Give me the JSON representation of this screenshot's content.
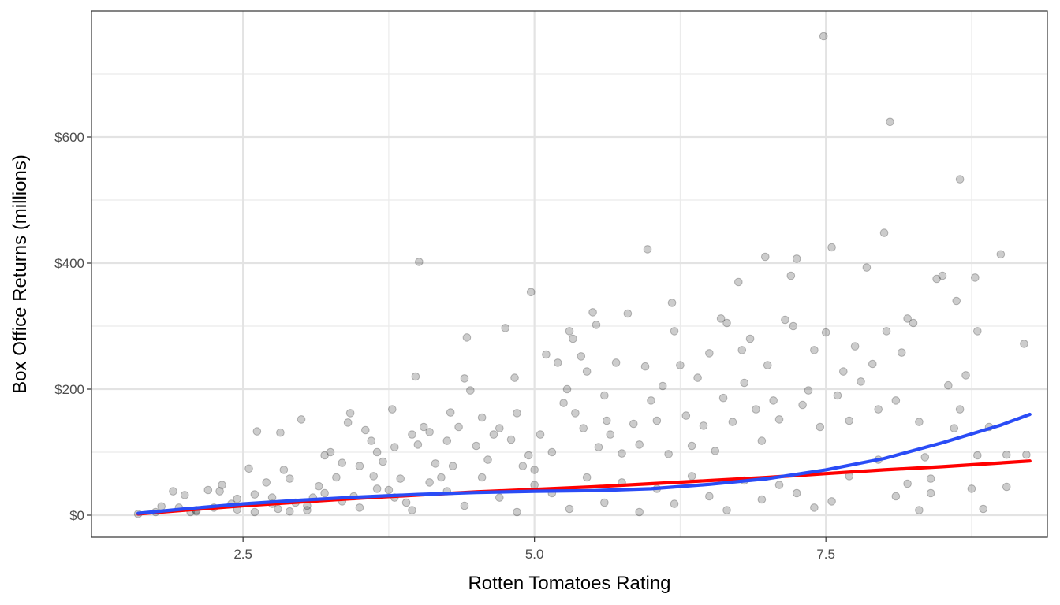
{
  "chart_data": {
    "type": "scatter",
    "title": "",
    "xlabel": "Rotten Tomatoes Rating",
    "ylabel": "Box Office Returns (millions)",
    "xlim": [
      1.2,
      9.4
    ],
    "ylim": [
      -35,
      800
    ],
    "x_ticks": [
      {
        "value": 2.5,
        "label": "2.5"
      },
      {
        "value": 5.0,
        "label": "5.0"
      },
      {
        "value": 7.5,
        "label": "7.5"
      }
    ],
    "x_minor_ticks": [
      3.75,
      6.25,
      8.75
    ],
    "y_ticks": [
      {
        "value": 0,
        "label": "$0"
      },
      {
        "value": 200,
        "label": "$200"
      },
      {
        "value": 400,
        "label": "$400"
      },
      {
        "value": 600,
        "label": "$600"
      }
    ],
    "y_minor_ticks": [
      100,
      300,
      500,
      700
    ],
    "grid": true,
    "legend": "none",
    "point_color": "#000000",
    "point_alpha": 0.2,
    "points": [
      [
        1.6,
        2
      ],
      [
        1.75,
        5
      ],
      [
        1.8,
        14
      ],
      [
        1.9,
        38
      ],
      [
        1.95,
        12
      ],
      [
        2.0,
        32
      ],
      [
        2.05,
        5
      ],
      [
        2.1,
        8
      ],
      [
        2.2,
        40
      ],
      [
        2.3,
        38
      ],
      [
        2.32,
        48
      ],
      [
        2.4,
        18
      ],
      [
        2.45,
        9
      ],
      [
        2.55,
        74
      ],
      [
        2.6,
        33
      ],
      [
        2.62,
        133
      ],
      [
        2.7,
        52
      ],
      [
        2.75,
        28
      ],
      [
        2.8,
        10
      ],
      [
        2.82,
        131
      ],
      [
        2.85,
        72
      ],
      [
        2.9,
        58
      ],
      [
        2.95,
        20
      ],
      [
        3.0,
        152
      ],
      [
        3.05,
        8
      ],
      [
        3.1,
        28
      ],
      [
        3.15,
        46
      ],
      [
        3.2,
        95
      ],
      [
        3.25,
        100
      ],
      [
        3.3,
        60
      ],
      [
        3.35,
        83
      ],
      [
        3.4,
        147
      ],
      [
        3.42,
        162
      ],
      [
        3.45,
        30
      ],
      [
        3.5,
        78
      ],
      [
        3.55,
        135
      ],
      [
        3.6,
        118
      ],
      [
        3.62,
        62
      ],
      [
        3.65,
        100
      ],
      [
        3.7,
        85
      ],
      [
        3.75,
        40
      ],
      [
        3.78,
        168
      ],
      [
        3.8,
        108
      ],
      [
        3.85,
        58
      ],
      [
        3.9,
        20
      ],
      [
        3.95,
        128
      ],
      [
        3.98,
        220
      ],
      [
        4.0,
        112
      ],
      [
        4.01,
        402
      ],
      [
        4.05,
        140
      ],
      [
        4.1,
        132
      ],
      [
        4.15,
        82
      ],
      [
        4.2,
        60
      ],
      [
        4.25,
        118
      ],
      [
        4.28,
        163
      ],
      [
        4.3,
        78
      ],
      [
        4.35,
        140
      ],
      [
        4.4,
        217
      ],
      [
        4.42,
        282
      ],
      [
        4.45,
        198
      ],
      [
        4.5,
        110
      ],
      [
        4.55,
        155
      ],
      [
        4.6,
        88
      ],
      [
        4.65,
        128
      ],
      [
        4.7,
        138
      ],
      [
        4.75,
        297
      ],
      [
        4.8,
        120
      ],
      [
        4.83,
        218
      ],
      [
        4.85,
        162
      ],
      [
        4.9,
        78
      ],
      [
        4.95,
        95
      ],
      [
        4.97,
        354
      ],
      [
        5.0,
        72
      ],
      [
        5.05,
        128
      ],
      [
        5.1,
        255
      ],
      [
        5.15,
        100
      ],
      [
        5.2,
        242
      ],
      [
        5.25,
        178
      ],
      [
        5.28,
        200
      ],
      [
        5.3,
        292
      ],
      [
        5.33,
        280
      ],
      [
        5.35,
        162
      ],
      [
        5.4,
        252
      ],
      [
        5.42,
        138
      ],
      [
        5.45,
        228
      ],
      [
        5.5,
        322
      ],
      [
        5.53,
        302
      ],
      [
        5.55,
        108
      ],
      [
        5.6,
        190
      ],
      [
        5.62,
        150
      ],
      [
        5.65,
        128
      ],
      [
        5.7,
        242
      ],
      [
        5.75,
        98
      ],
      [
        5.8,
        320
      ],
      [
        5.85,
        145
      ],
      [
        5.9,
        112
      ],
      [
        5.95,
        236
      ],
      [
        5.97,
        422
      ],
      [
        6.0,
        182
      ],
      [
        6.05,
        150
      ],
      [
        6.1,
        205
      ],
      [
        6.15,
        97
      ],
      [
        6.18,
        337
      ],
      [
        6.2,
        292
      ],
      [
        6.25,
        238
      ],
      [
        6.3,
        158
      ],
      [
        6.35,
        110
      ],
      [
        6.4,
        218
      ],
      [
        6.45,
        142
      ],
      [
        6.5,
        257
      ],
      [
        6.55,
        102
      ],
      [
        6.6,
        312
      ],
      [
        6.62,
        186
      ],
      [
        6.65,
        305
      ],
      [
        6.7,
        148
      ],
      [
        6.75,
        370
      ],
      [
        6.78,
        262
      ],
      [
        6.8,
        210
      ],
      [
        6.85,
        280
      ],
      [
        6.9,
        168
      ],
      [
        6.95,
        118
      ],
      [
        6.98,
        410
      ],
      [
        7.0,
        238
      ],
      [
        7.05,
        182
      ],
      [
        7.1,
        152
      ],
      [
        7.15,
        310
      ],
      [
        7.2,
        380
      ],
      [
        7.22,
        300
      ],
      [
        7.25,
        407
      ],
      [
        7.3,
        175
      ],
      [
        7.35,
        198
      ],
      [
        7.4,
        262
      ],
      [
        7.45,
        140
      ],
      [
        7.48,
        760
      ],
      [
        7.5,
        290
      ],
      [
        7.55,
        425
      ],
      [
        7.6,
        190
      ],
      [
        7.65,
        228
      ],
      [
        7.7,
        150
      ],
      [
        7.75,
        268
      ],
      [
        7.8,
        212
      ],
      [
        7.85,
        393
      ],
      [
        7.9,
        240
      ],
      [
        7.95,
        168
      ],
      [
        8.0,
        448
      ],
      [
        8.02,
        292
      ],
      [
        8.05,
        624
      ],
      [
        8.1,
        182
      ],
      [
        8.15,
        258
      ],
      [
        8.2,
        312
      ],
      [
        8.25,
        305
      ],
      [
        8.3,
        148
      ],
      [
        8.35,
        92
      ],
      [
        8.4,
        58
      ],
      [
        8.45,
        375
      ],
      [
        8.5,
        380
      ],
      [
        8.55,
        206
      ],
      [
        8.6,
        138
      ],
      [
        8.62,
        340
      ],
      [
        8.65,
        533
      ],
      [
        8.7,
        222
      ],
      [
        8.75,
        42
      ],
      [
        8.78,
        377
      ],
      [
        8.8,
        292
      ],
      [
        8.85,
        10
      ],
      [
        8.9,
        140
      ],
      [
        9.0,
        414
      ],
      [
        9.05,
        96
      ],
      [
        9.2,
        272
      ],
      [
        9.22,
        96
      ],
      [
        9.05,
        45
      ],
      [
        8.65,
        168
      ],
      [
        8.8,
        95
      ],
      [
        8.4,
        35
      ],
      [
        8.3,
        8
      ],
      [
        8.2,
        50
      ],
      [
        8.1,
        30
      ],
      [
        7.95,
        88
      ],
      [
        7.7,
        62
      ],
      [
        7.55,
        22
      ],
      [
        7.4,
        12
      ],
      [
        7.25,
        35
      ],
      [
        7.1,
        48
      ],
      [
        6.95,
        25
      ],
      [
        6.8,
        55
      ],
      [
        6.65,
        8
      ],
      [
        6.5,
        30
      ],
      [
        6.35,
        62
      ],
      [
        6.2,
        18
      ],
      [
        6.05,
        42
      ],
      [
        5.9,
        5
      ],
      [
        5.75,
        52
      ],
      [
        5.6,
        20
      ],
      [
        5.45,
        60
      ],
      [
        5.3,
        10
      ],
      [
        5.15,
        35
      ],
      [
        5.0,
        48
      ],
      [
        4.85,
        5
      ],
      [
        4.7,
        28
      ],
      [
        4.55,
        60
      ],
      [
        4.4,
        15
      ],
      [
        4.25,
        38
      ],
      [
        4.1,
        52
      ],
      [
        3.95,
        8
      ],
      [
        3.8,
        28
      ],
      [
        3.65,
        42
      ],
      [
        3.5,
        12
      ],
      [
        3.35,
        22
      ],
      [
        3.2,
        35
      ],
      [
        3.05,
        15
      ],
      [
        2.9,
        6
      ],
      [
        2.75,
        18
      ],
      [
        2.6,
        5
      ],
      [
        2.45,
        26
      ],
      [
        2.25,
        12
      ],
      [
        2.1,
        6
      ]
    ],
    "series": [
      {
        "color": "#ff0000",
        "x": [
          1.6,
          2.0,
          2.5,
          3.0,
          3.5,
          4.0,
          4.5,
          5.0,
          5.5,
          6.0,
          6.5,
          7.0,
          7.5,
          8.0,
          8.5,
          9.0,
          9.25
        ],
        "y": [
          2,
          8,
          15,
          21,
          27,
          32,
          37,
          41,
          45,
          50,
          55,
          60,
          66,
          72,
          77,
          83,
          86
        ]
      },
      {
        "color": "#2a4cf6",
        "x": [
          1.6,
          2.0,
          2.5,
          3.0,
          3.5,
          4.0,
          4.5,
          5.0,
          5.5,
          6.0,
          6.5,
          7.0,
          7.5,
          8.0,
          8.5,
          9.0,
          9.25
        ],
        "y": [
          3,
          10,
          18,
          24,
          29,
          33,
          36,
          38,
          39,
          42,
          49,
          58,
          72,
          90,
          115,
          143,
          160
        ]
      }
    ]
  }
}
